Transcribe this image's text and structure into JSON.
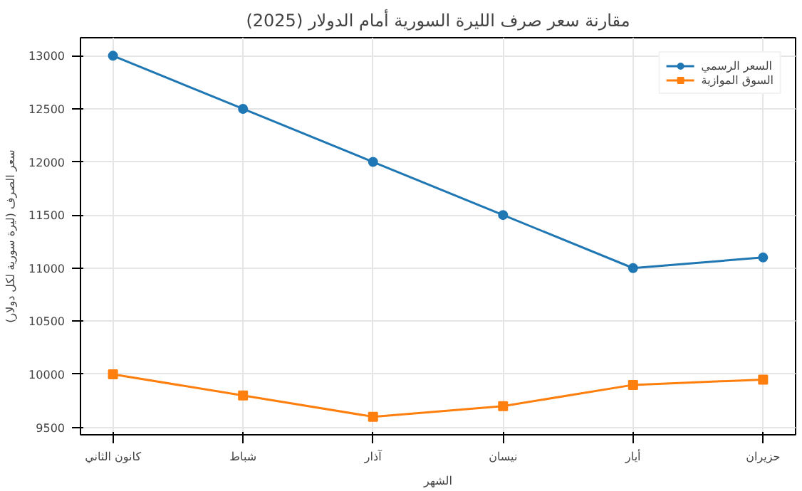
{
  "chart_data": {
    "type": "line",
    "title": "مقارنة سعر صرف الليرة السورية أمام الدولار (2025)",
    "xlabel": "الشهر",
    "ylabel": "سعر الصرف (ليرة سورية لكل دولار)",
    "categories": [
      "كانون الثاني",
      "شباط",
      "آذار",
      "نيسان",
      "أيار",
      "حزيران"
    ],
    "series": [
      {
        "name": "السعر الرسمي",
        "color": "#1f77b4",
        "marker": "circle",
        "values": [
          13000,
          12500,
          12000,
          11500,
          11000,
          11100
        ]
      },
      {
        "name": "السوق الموازية",
        "color": "#ff7f0e",
        "marker": "square",
        "values": [
          10000,
          9800,
          9600,
          9700,
          9900,
          9950
        ]
      }
    ],
    "ylim": [
      9430,
      13170
    ],
    "yticks": [
      9500,
      10000,
      10500,
      11000,
      11500,
      12000,
      12500,
      13000
    ],
    "grid": true,
    "legend": "top right",
    "line_style": "solid"
  }
}
